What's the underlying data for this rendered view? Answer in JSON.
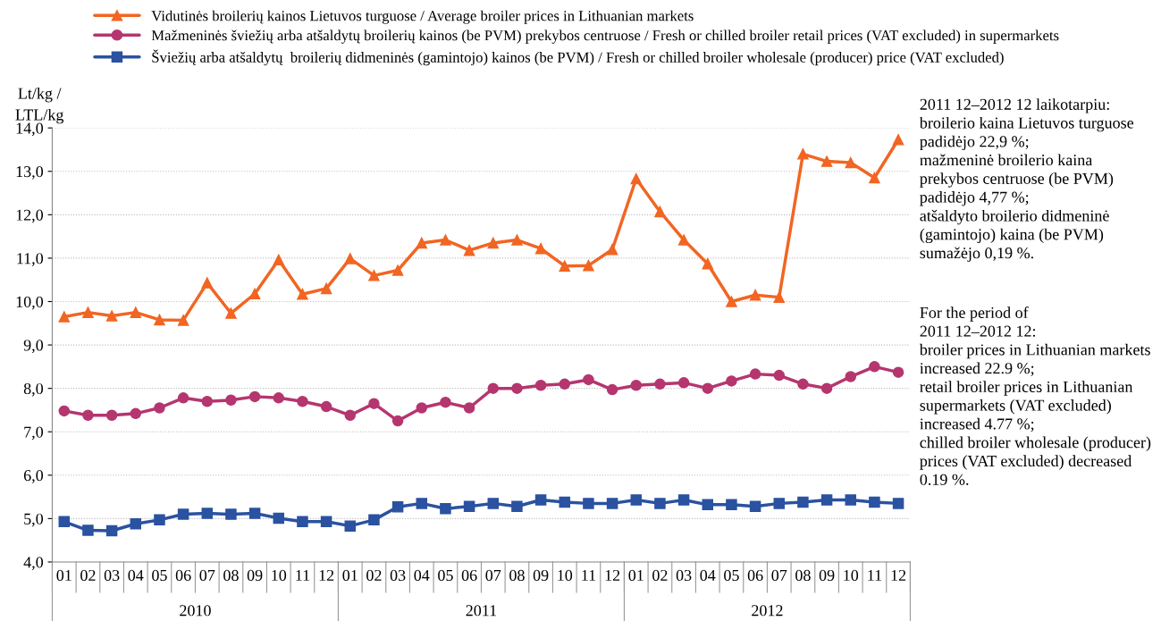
{
  "chart_data": {
    "type": "line",
    "ylabel": "Lt/kg /\nLTL/kg",
    "categories": [
      "01",
      "02",
      "03",
      "04",
      "05",
      "06",
      "07",
      "08",
      "09",
      "10",
      "11",
      "12",
      "01",
      "02",
      "03",
      "04",
      "05",
      "06",
      "07",
      "08",
      "09",
      "10",
      "11",
      "12",
      "01",
      "02",
      "03",
      "04",
      "05",
      "06",
      "07",
      "08",
      "09",
      "10",
      "11",
      "12"
    ],
    "series": [
      {
        "name": "Vidutinės broilerių kainos Lietuvos turguose / Average broiler prices in Lithuanian markets",
        "color": "#f26522",
        "marker": "triangle",
        "values": [
          9.65,
          9.75,
          9.67,
          9.75,
          9.58,
          9.57,
          10.43,
          9.73,
          10.18,
          10.96,
          10.17,
          10.3,
          10.99,
          10.6,
          10.72,
          11.35,
          11.42,
          11.18,
          11.35,
          11.42,
          11.22,
          10.82,
          10.83,
          11.2,
          12.83,
          12.07,
          11.42,
          10.87,
          10.0,
          10.15,
          10.1,
          13.4,
          13.23,
          13.2,
          12.85,
          13.73
        ]
      },
      {
        "name": "Mažmeninės šviežių arba atšaldytų broilerių kainos (be PVM) prekybos centruose / Fresh or chilled broiler retail prices (VAT excluded) in supermarkets",
        "color": "#b5366f",
        "marker": "circle",
        "values": [
          7.48,
          7.38,
          7.38,
          7.42,
          7.55,
          7.78,
          7.7,
          7.73,
          7.81,
          7.78,
          7.7,
          7.58,
          7.38,
          7.65,
          7.25,
          7.55,
          7.68,
          7.55,
          8.0,
          8.0,
          8.07,
          8.1,
          8.2,
          7.97,
          8.07,
          8.1,
          8.13,
          8.0,
          8.17,
          8.33,
          8.3,
          8.1,
          8.0,
          8.27,
          8.5,
          8.37
        ]
      },
      {
        "name": "Šviežių arba atšaldytų  broilerių didmeninės (gamintojo) kainos (be PVM) / Fresh or chilled broiler wholesale (producer) price (VAT excluded)",
        "color": "#2a52a0",
        "marker": "square",
        "values": [
          4.93,
          4.73,
          4.72,
          4.88,
          4.97,
          5.1,
          5.12,
          5.1,
          5.12,
          5.01,
          4.93,
          4.93,
          4.83,
          4.97,
          5.27,
          5.35,
          5.23,
          5.28,
          5.35,
          5.28,
          5.43,
          5.38,
          5.35,
          5.35,
          5.43,
          5.35,
          5.43,
          5.32,
          5.32,
          5.28,
          5.35,
          5.38,
          5.43,
          5.43,
          5.38,
          5.35
        ]
      }
    ],
    "ylim": [
      4,
      14
    ],
    "yticks": [
      {
        "value": 4,
        "label": "4,0"
      },
      {
        "value": 5,
        "label": "5,0"
      },
      {
        "value": 6,
        "label": "6,0"
      },
      {
        "value": 7,
        "label": "7,0"
      },
      {
        "value": 8,
        "label": "8,0"
      },
      {
        "value": 9,
        "label": "9,0"
      },
      {
        "value": 10,
        "label": "10,0"
      },
      {
        "value": 11,
        "label": "11,0"
      },
      {
        "value": 12,
        "label": "12,0"
      },
      {
        "value": 13,
        "label": "13,0"
      },
      {
        "value": 14,
        "label": "14,0"
      }
    ],
    "grid": "y",
    "legend": "top",
    "line_style": "solid",
    "annotations": [
      "2010",
      "2011",
      "2012",
      "2011 12–2012 12 laikotarpiu:\nbroilerio kaina Lietuvos turguose\npadidėjo 22,9 %;\nmažmeninė broilerio kaina\nprekybos centruose (be PVM)\npadidėjo 4,77 %;\natšaldyto broilerio didmeninė\n(gamintojo) kaina (be PVM)\nsumažėjo 0,19 %.",
      "For the period of\n2011 12–2012 12:\nbroiler prices in Lithuanian markets\nincreased 22.9 %;\nretail broiler prices in Lithuanian\nsupermarkets (VAT excluded)\nincreased 4.77 %;\nchilled broiler wholesale (producer)\nprices (VAT excluded) decreased\n0.19 %."
    ]
  }
}
